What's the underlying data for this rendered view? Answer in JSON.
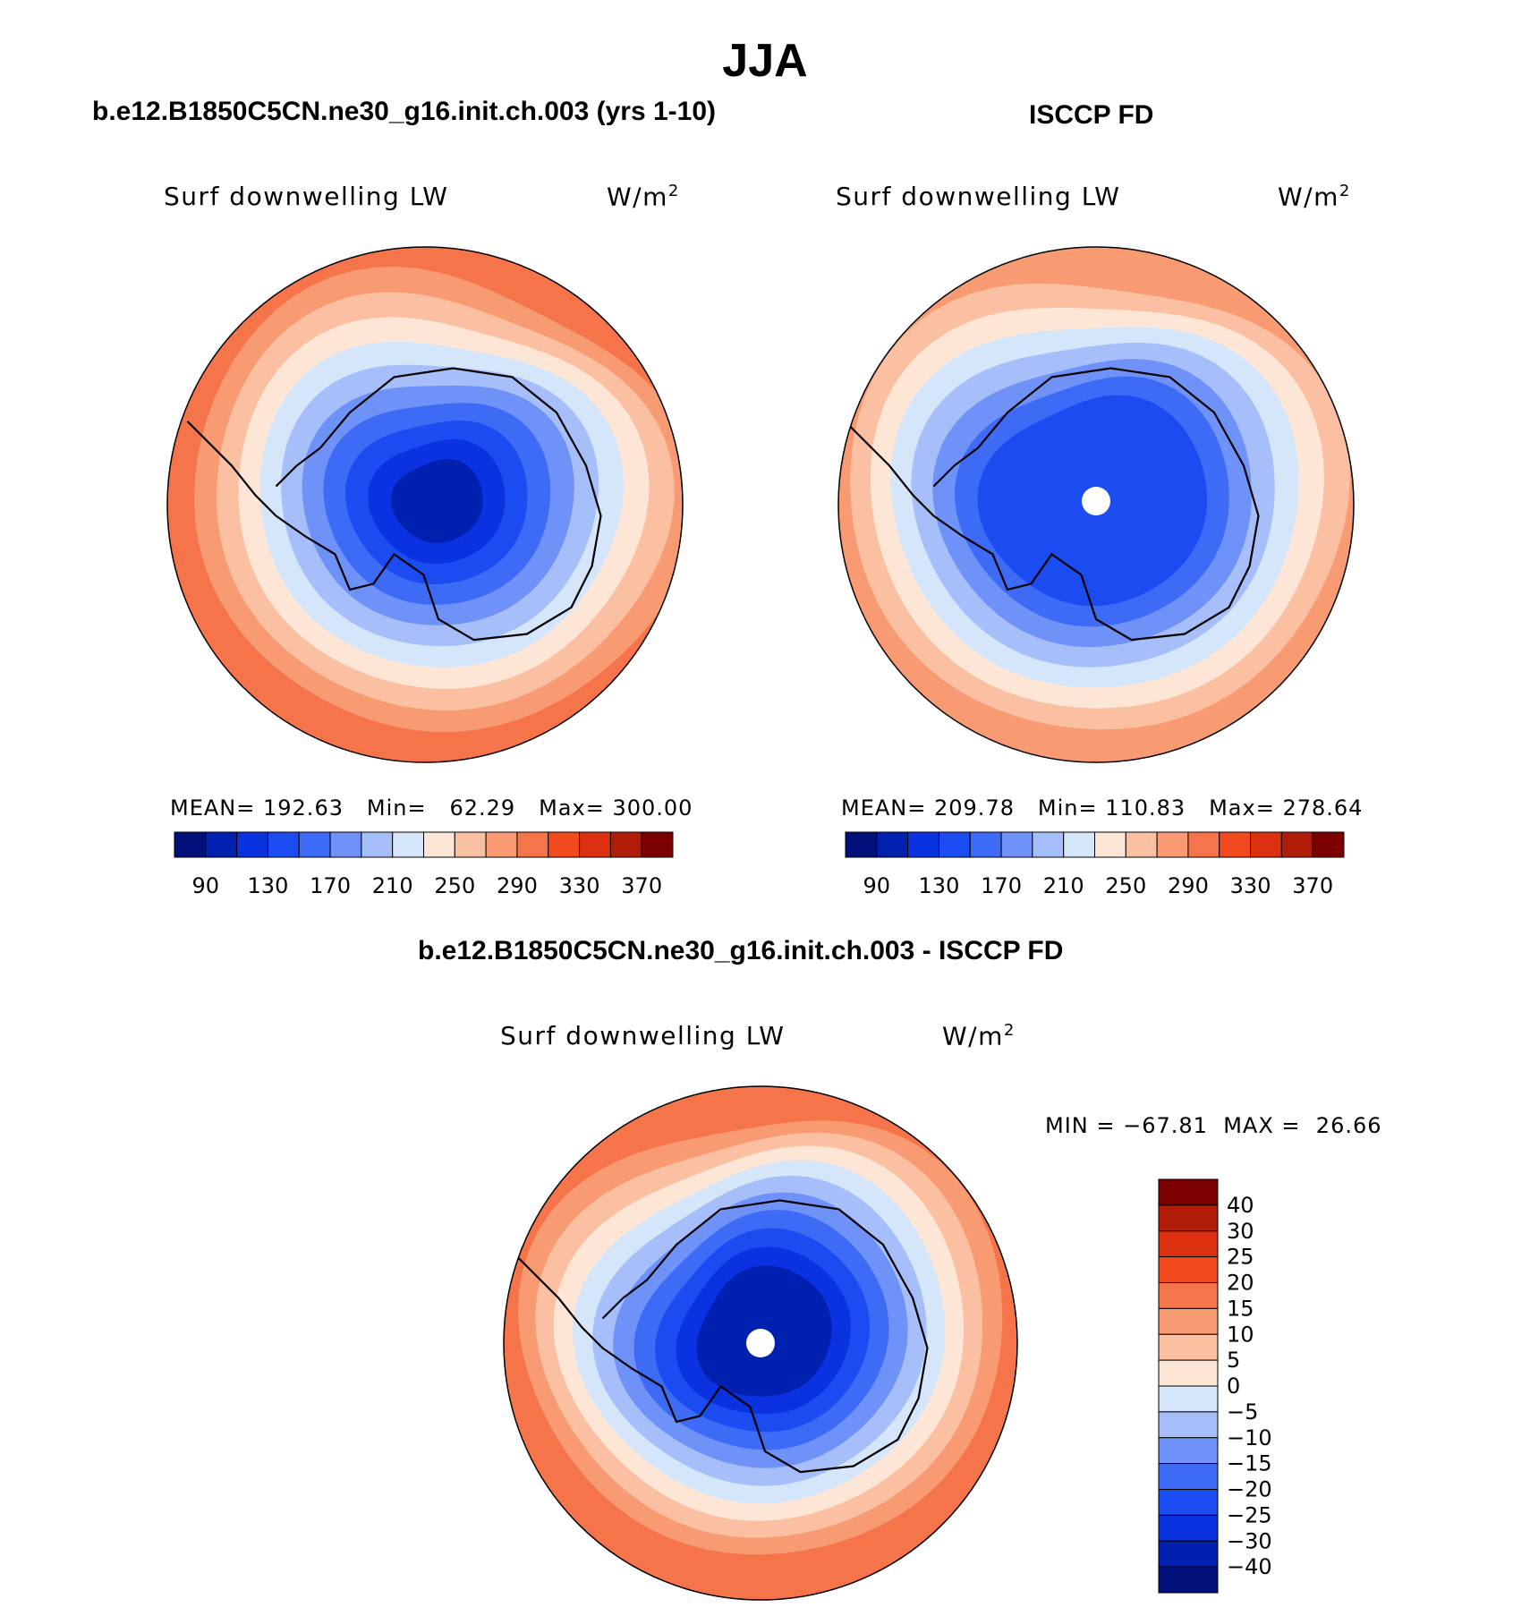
{
  "figure": {
    "season": "JJA",
    "panel1_title": "b.e12.B1850C5CN.ne30_g16.init.ch.003 (yrs 1-10)",
    "panel2_title": "ISCCP FD",
    "panel3_title": "b.e12.B1850C5CN.ne30_g16.init.ch.003 - ISCCP FD"
  },
  "panels": [
    {
      "variable": "Surf downwelling LW",
      "unit_base": "W/m",
      "unit_exp": "2",
      "stats": {
        "mean_label": "MEAN=",
        "mean": "192.63",
        "min_label": "Min=",
        "min": "62.29",
        "max_label": "Max=",
        "max": "300.00"
      }
    },
    {
      "variable": "Surf downwelling LW",
      "unit_base": "W/m",
      "unit_exp": "2",
      "stats": {
        "mean_label": "MEAN=",
        "mean": "209.78",
        "min_label": "Min=",
        "min": "110.83",
        "max_label": "Max=",
        "max": "278.64"
      }
    },
    {
      "variable": "Surf downwelling LW",
      "unit_base": "W/m",
      "unit_exp": "2",
      "stats": {
        "min_label": "MIN =",
        "min": "−67.81",
        "max_label": "MAX =",
        "max": "26.66"
      }
    }
  ],
  "colors": {
    "abs_palette": [
      "#000f7a",
      "#0020b0",
      "#0a32e0",
      "#1a4cf2",
      "#3e6bf5",
      "#6e92f7",
      "#a6befa",
      "#d6e6fa",
      "#fde6d6",
      "#fbc0a2",
      "#f89a72",
      "#f5744a",
      "#f24a1e",
      "#dc3010",
      "#b01c08",
      "#7c0000"
    ],
    "diff_palette": [
      "#000f7a",
      "#0020b0",
      "#0a32e0",
      "#1a4cf2",
      "#3e6bf5",
      "#6e92f7",
      "#a6befa",
      "#d6e6fa",
      "#fde6d6",
      "#fbc0a2",
      "#f89a72",
      "#f5744a",
      "#f24a1e",
      "#dc3010",
      "#b01c08",
      "#7c0000"
    ]
  },
  "chart_data": [
    {
      "type": "heatmap",
      "projection": "south-polar-stereographic",
      "title": "b.e12.B1850C5CN.ne30_g16.init.ch.003 (yrs 1-10)",
      "field": "Surf downwelling LW",
      "units": "W/m2",
      "mean": 192.63,
      "min": 62.29,
      "max": 300.0,
      "contour_levels": [
        90,
        110,
        130,
        150,
        170,
        190,
        210,
        230,
        250,
        270,
        290,
        310,
        330,
        350,
        370
      ],
      "colorbar_ticks": [
        "90",
        "130",
        "170",
        "210",
        "250",
        "290",
        "330",
        "370"
      ],
      "ring_levels_outer_to_inner": [
        290,
        270,
        250,
        230,
        210,
        190,
        170,
        150,
        130,
        110,
        90
      ]
    },
    {
      "type": "heatmap",
      "projection": "south-polar-stereographic",
      "title": "ISCCP FD",
      "field": "Surf downwelling LW",
      "units": "W/m2",
      "mean": 209.78,
      "min": 110.83,
      "max": 278.64,
      "contour_levels": [
        90,
        110,
        130,
        150,
        170,
        190,
        210,
        230,
        250,
        270,
        290,
        310,
        330,
        350,
        370
      ],
      "colorbar_ticks": [
        "90",
        "130",
        "170",
        "210",
        "250",
        "290",
        "330",
        "370"
      ],
      "ring_levels_outer_to_inner": [
        270,
        250,
        230,
        210,
        190,
        170,
        150,
        130
      ]
    },
    {
      "type": "heatmap",
      "projection": "south-polar-stereographic",
      "title": "b.e12.B1850C5CN.ne30_g16.init.ch.003 - ISCCP FD",
      "field": "Surf downwelling LW",
      "units": "W/m2",
      "min": -67.81,
      "max": 26.66,
      "contour_levels": [
        -40,
        -30,
        -25,
        -20,
        -15,
        -10,
        -5,
        0,
        5,
        10,
        15,
        20,
        25,
        30,
        40
      ],
      "colorbar_ticks": [
        "40",
        "30",
        "25",
        "20",
        "15",
        "10",
        "5",
        "0",
        "−5",
        "−10",
        "−15",
        "−20",
        "−25",
        "−30",
        "−40"
      ],
      "ring_levels_outer_to_inner": [
        15,
        10,
        5,
        0,
        -5,
        -10,
        -15,
        -20,
        -25,
        -30,
        -40
      ]
    }
  ]
}
